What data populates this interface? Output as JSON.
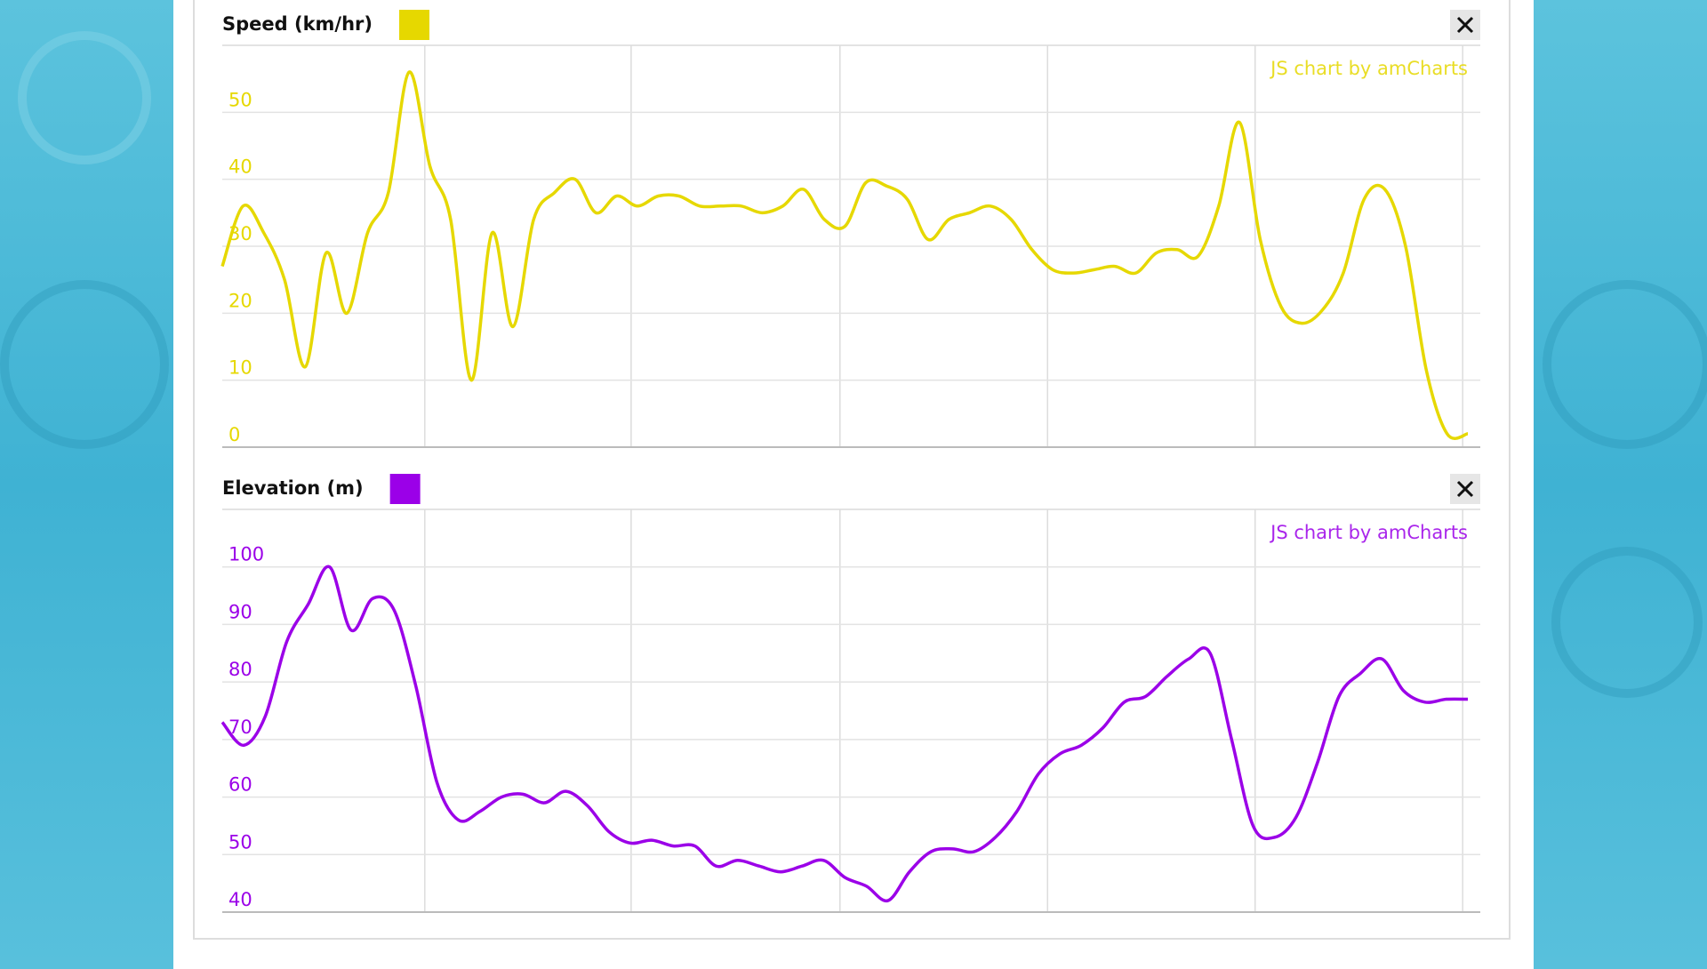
{
  "chart_data": [
    {
      "type": "line",
      "title": "Speed (km/hr)",
      "credit": "JS chart by amCharts",
      "color": "#e6d800",
      "values": [
        27,
        36,
        32,
        25,
        12,
        29,
        20,
        32,
        38,
        56,
        42,
        34,
        10,
        32,
        18,
        34,
        38,
        40,
        35,
        37.5,
        36,
        37.5,
        37.5,
        36,
        36,
        36,
        35,
        36,
        38.5,
        34,
        33,
        39.5,
        39,
        37,
        31,
        34,
        35,
        36,
        34,
        29.5,
        26.5,
        26,
        26.5,
        27,
        26,
        29,
        29.5,
        28.5,
        36,
        48.5,
        31,
        21,
        18.5,
        20.5,
        26,
        37,
        38.5,
        30,
        11.5,
        2,
        2
      ],
      "ylim": [
        0,
        60
      ],
      "yticks": [
        0,
        10,
        20,
        30,
        40,
        50
      ],
      "grid": true
    },
    {
      "type": "line",
      "title": "Elevation (m)",
      "credit": "JS chart by amCharts",
      "color": "#9b00e8",
      "values": [
        73,
        69,
        74,
        87,
        93.5,
        100,
        89,
        94.5,
        92.5,
        79.5,
        62.5,
        56,
        57.5,
        60,
        60.5,
        59,
        61,
        58.5,
        54,
        52,
        52.5,
        51.5,
        51.5,
        48,
        49,
        48,
        47,
        48,
        49,
        46,
        44.5,
        42,
        47,
        50.5,
        51,
        50.5,
        53,
        57.5,
        64,
        67.5,
        69,
        72,
        76.5,
        77.5,
        81,
        84,
        85,
        70,
        55,
        53,
        56.5,
        66,
        77.5,
        81.5,
        84,
        78.5,
        76.5,
        77,
        77
      ],
      "ylim": [
        40,
        110
      ],
      "yticks": [
        40,
        50,
        60,
        70,
        80,
        90,
        100
      ],
      "grid": true
    }
  ]
}
